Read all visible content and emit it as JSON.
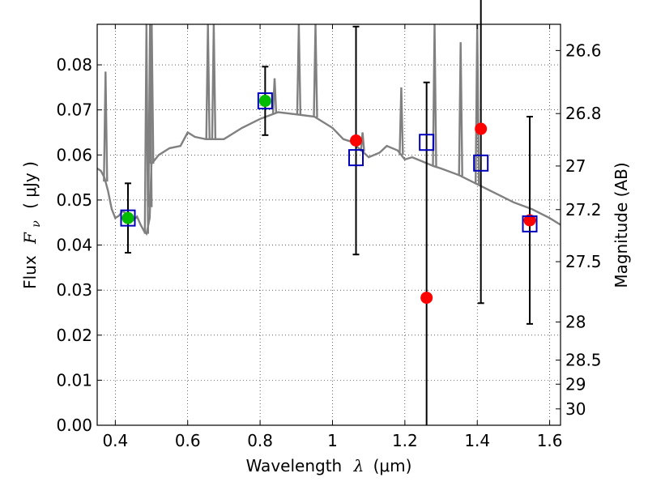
{
  "chart_data": {
    "type": "scatter",
    "xlabel_text": "Wavelength",
    "xlabel_symbol": "λ",
    "xlabel_unit": "(μm)",
    "ylabel_text": "Flux",
    "ylabel_symbol": "F",
    "ylabel_subscript": "ν",
    "ylabel_unit": "( μJy )",
    "y2label": "Magnitude (AB)",
    "xlim": [
      0.35,
      1.63
    ],
    "ylim": [
      0.0,
      0.089
    ],
    "xticks": [
      0.4,
      0.6,
      0.8,
      1.0,
      1.2,
      1.4,
      1.6
    ],
    "xtick_labels": [
      "0.4",
      "0.6",
      "0.8",
      "1",
      "1.2",
      "1.4",
      "1.6"
    ],
    "yticks": [
      0.0,
      0.01,
      0.02,
      0.03,
      0.04,
      0.05,
      0.06,
      0.07,
      0.08
    ],
    "ytick_labels": [
      "0.00",
      "0.01",
      "0.02",
      "0.03",
      "0.04",
      "0.05",
      "0.06",
      "0.07",
      "0.08"
    ],
    "y2ticks": [
      26.6,
      26.8,
      27.0,
      27.2,
      27.5,
      28.0,
      28.5,
      29.0,
      30.0
    ],
    "y2tick_labels": [
      "26.6",
      "26.8",
      "27",
      "27.2",
      "27.5",
      "28",
      "28.5",
      "29",
      "30"
    ],
    "grid": true,
    "colors": {
      "model": "#808080",
      "measured_green": "#00bb00",
      "measured_red": "#ff0000",
      "model_box": "#0000bb",
      "errorbar": "#000000"
    },
    "model_spectrum": {
      "x": [
        0.35,
        0.36,
        0.37,
        0.38,
        0.385,
        0.39,
        0.395,
        0.4,
        0.41,
        0.42,
        0.43,
        0.44,
        0.45,
        0.46,
        0.47,
        0.48,
        0.486,
        0.49,
        0.495,
        0.5,
        0.51,
        0.52,
        0.55,
        0.58,
        0.6,
        0.62,
        0.65,
        0.7,
        0.75,
        0.8,
        0.85,
        0.9,
        0.95,
        1.0,
        1.03,
        1.05,
        1.08,
        1.1,
        1.13,
        1.15,
        1.18,
        1.2,
        1.22,
        1.25,
        1.28,
        1.3,
        1.35,
        1.4,
        1.45,
        1.5,
        1.55,
        1.6,
        1.63
      ],
      "y": [
        0.057,
        0.0565,
        0.055,
        0.052,
        0.05,
        0.048,
        0.047,
        0.046,
        0.0465,
        0.0475,
        0.047,
        0.046,
        0.0455,
        0.0463,
        0.0445,
        0.043,
        0.0425,
        0.044,
        0.046,
        0.058,
        0.059,
        0.06,
        0.0615,
        0.062,
        0.065,
        0.064,
        0.0635,
        0.0635,
        0.066,
        0.068,
        0.0695,
        0.069,
        0.0685,
        0.066,
        0.0635,
        0.063,
        0.061,
        0.0595,
        0.0605,
        0.062,
        0.061,
        0.059,
        0.0595,
        0.0585,
        0.0575,
        0.057,
        0.0555,
        0.0535,
        0.0515,
        0.0495,
        0.048,
        0.046,
        0.0445
      ]
    },
    "emission_lines": [
      {
        "x": 0.373,
        "peak": 0.0785
      },
      {
        "x": 0.486,
        "peak": 0.089
      },
      {
        "x": 0.496,
        "peak": 0.089
      },
      {
        "x": 0.5007,
        "peak": 0.089
      },
      {
        "x": 0.656,
        "peak": 0.089
      },
      {
        "x": 0.672,
        "peak": 0.089
      },
      {
        "x": 0.84,
        "peak": 0.077
      },
      {
        "x": 0.907,
        "peak": 0.089
      },
      {
        "x": 0.953,
        "peak": 0.089
      },
      {
        "x": 1.083,
        "peak": 0.065
      },
      {
        "x": 1.19,
        "peak": 0.075
      },
      {
        "x": 1.282,
        "peak": 0.089
      },
      {
        "x": 1.354,
        "peak": 0.085
      },
      {
        "x": 1.4,
        "peak": 0.089
      }
    ],
    "photometry": [
      {
        "x": 0.435,
        "y": 0.046,
        "err": 0.0077,
        "model": 0.046,
        "color": "green"
      },
      {
        "x": 0.814,
        "y": 0.072,
        "err": 0.0076,
        "model": 0.072,
        "color": "green"
      },
      {
        "x": 1.065,
        "y": 0.0632,
        "err": 0.0253,
        "model": 0.0594,
        "color": "red"
      },
      {
        "x": 1.26,
        "y": 0.0283,
        "err": 0.0478,
        "model": 0.0628,
        "color": "red"
      },
      {
        "x": 1.41,
        "y": 0.0658,
        "err": 0.0387,
        "model": 0.0582,
        "color": "red"
      },
      {
        "x": 1.545,
        "y": 0.0455,
        "err": 0.023,
        "model": 0.0447,
        "color": "red"
      }
    ]
  }
}
